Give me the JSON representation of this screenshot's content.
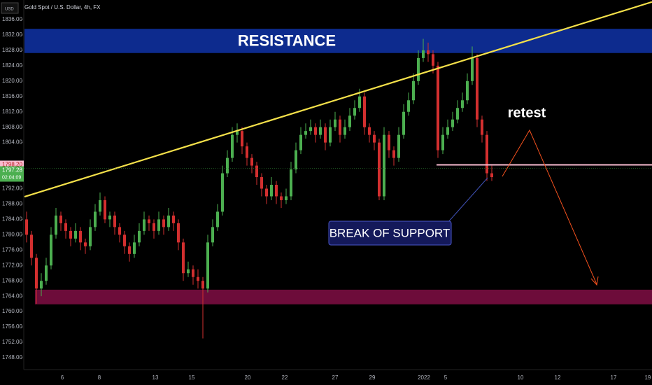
{
  "chart_data": {
    "type": "candlestick",
    "title": "Gold Spot / U.S. Dollar, 4h, FX",
    "currency": "USD",
    "up_color": "#4caf50",
    "down_color": "#d32f2f",
    "ylim": [
      1746,
      1841
    ],
    "yticks": [
      {
        "value": 1836,
        "label": "1836.00"
      },
      {
        "value": 1832,
        "label": "1832.00"
      },
      {
        "value": 1828,
        "label": "1828.00"
      },
      {
        "value": 1824,
        "label": "1824.00"
      },
      {
        "value": 1820,
        "label": "1820.00"
      },
      {
        "value": 1816,
        "label": "1816.00"
      },
      {
        "value": 1812,
        "label": "1812.00"
      },
      {
        "value": 1808,
        "label": "1808.00"
      },
      {
        "value": 1804,
        "label": "1804.00"
      },
      {
        "value": 1792,
        "label": "1792.00"
      },
      {
        "value": 1788,
        "label": "1788.00"
      },
      {
        "value": 1784,
        "label": "1784.00"
      },
      {
        "value": 1780,
        "label": "1780.00"
      },
      {
        "value": 1776,
        "label": "1776.00"
      },
      {
        "value": 1772,
        "label": "1772.00"
      },
      {
        "value": 1768,
        "label": "1768.00"
      },
      {
        "value": 1764,
        "label": "1764.00"
      },
      {
        "value": 1760,
        "label": "1760.00"
      },
      {
        "value": 1756,
        "label": "1756.00"
      },
      {
        "value": 1752,
        "label": "1752.00"
      },
      {
        "value": 1748,
        "label": "1748.00"
      }
    ],
    "x_labels": [
      "6",
      "8",
      "13",
      "15",
      "20",
      "22",
      "27",
      "29",
      "2022",
      "5",
      "10",
      "12",
      "17",
      "19"
    ],
    "price_label": {
      "value": 1798.2,
      "label": "1798.20"
    },
    "last_price": 1797.28,
    "countdown": "02:04:09",
    "resistance": {
      "label": "RESISTANCE",
      "range": [
        1827.3,
        1833.6
      ]
    },
    "support_zone": [
      1761.9,
      1765.7
    ],
    "support_line": 1798.2,
    "trendline": [
      1789.9,
      1840.6
    ],
    "retest": "retest",
    "break_label": "BREAK OF SUPPORT",
    "candles": [
      [
        1784,
        1786,
        1778,
        1780
      ],
      [
        1780,
        1781,
        1772,
        1774
      ],
      [
        1774,
        1775,
        1762,
        1766
      ],
      [
        1766,
        1770,
        1764,
        1768
      ],
      [
        1768,
        1774,
        1767,
        1772
      ],
      [
        1772,
        1782,
        1771,
        1780
      ],
      [
        1780,
        1787,
        1779,
        1785
      ],
      [
        1785,
        1786,
        1781,
        1783
      ],
      [
        1783,
        1784,
        1779,
        1781
      ],
      [
        1781,
        1782,
        1777,
        1779
      ],
      [
        1779,
        1783,
        1778,
        1781
      ],
      [
        1781,
        1782,
        1776,
        1778
      ],
      [
        1778,
        1779,
        1775,
        1777
      ],
      [
        1777,
        1784,
        1776,
        1782
      ],
      [
        1782,
        1788,
        1781,
        1786
      ],
      [
        1786,
        1791,
        1785,
        1789
      ],
      [
        1789,
        1790,
        1783,
        1784
      ],
      [
        1784,
        1786,
        1782,
        1785
      ],
      [
        1785,
        1786,
        1780,
        1782
      ],
      [
        1782,
        1783,
        1778,
        1780
      ],
      [
        1780,
        1781,
        1775,
        1777
      ],
      [
        1777,
        1778,
        1773,
        1775
      ],
      [
        1775,
        1780,
        1774,
        1778
      ],
      [
        1778,
        1783,
        1777,
        1781
      ],
      [
        1781,
        1786,
        1780,
        1784
      ],
      [
        1784,
        1785,
        1781,
        1783
      ],
      [
        1783,
        1784,
        1779,
        1781
      ],
      [
        1781,
        1786,
        1780,
        1784
      ],
      [
        1784,
        1785,
        1780,
        1782
      ],
      [
        1782,
        1787,
        1781,
        1785
      ],
      [
        1785,
        1786,
        1781,
        1783
      ],
      [
        1783,
        1784,
        1776,
        1778
      ],
      [
        1778,
        1779,
        1768,
        1770
      ],
      [
        1770,
        1773,
        1769,
        1771
      ],
      [
        1771,
        1772,
        1767,
        1769
      ],
      [
        1769,
        1771,
        1766,
        1768
      ],
      [
        1768,
        1769,
        1753,
        1766
      ],
      [
        1766,
        1780,
        1765,
        1778
      ],
      [
        1778,
        1784,
        1777,
        1782
      ],
      [
        1782,
        1788,
        1781,
        1786
      ],
      [
        1786,
        1798,
        1785,
        1796
      ],
      [
        1796,
        1802,
        1795,
        1800
      ],
      [
        1800,
        1808,
        1799,
        1806
      ],
      [
        1806,
        1809,
        1804,
        1807
      ],
      [
        1807,
        1808,
        1801,
        1803
      ],
      [
        1803,
        1804,
        1798,
        1800
      ],
      [
        1800,
        1801,
        1796,
        1798
      ],
      [
        1798,
        1799,
        1793,
        1795
      ],
      [
        1795,
        1796,
        1790,
        1792
      ],
      [
        1792,
        1793,
        1788,
        1790
      ],
      [
        1790,
        1795,
        1789,
        1793
      ],
      [
        1793,
        1794,
        1788,
        1790
      ],
      [
        1790,
        1791,
        1787,
        1789
      ],
      [
        1789,
        1792,
        1788,
        1790
      ],
      [
        1790,
        1799,
        1789,
        1797
      ],
      [
        1797,
        1804,
        1796,
        1802
      ],
      [
        1802,
        1808,
        1801,
        1806
      ],
      [
        1806,
        1809,
        1805,
        1807
      ],
      [
        1807,
        1810,
        1806,
        1808
      ],
      [
        1808,
        1809,
        1804,
        1806
      ],
      [
        1806,
        1810,
        1805,
        1808
      ],
      [
        1808,
        1809,
        1802,
        1804
      ],
      [
        1804,
        1810,
        1803,
        1808
      ],
      [
        1808,
        1812,
        1807,
        1810
      ],
      [
        1810,
        1811,
        1804,
        1806
      ],
      [
        1806,
        1810,
        1805,
        1808
      ],
      [
        1808,
        1813,
        1807,
        1811
      ],
      [
        1811,
        1815,
        1810,
        1813
      ],
      [
        1813,
        1818,
        1812,
        1816
      ],
      [
        1816,
        1817,
        1806,
        1808
      ],
      [
        1808,
        1809,
        1804,
        1806
      ],
      [
        1806,
        1807,
        1802,
        1804
      ],
      [
        1804,
        1805,
        1789,
        1790
      ],
      [
        1790,
        1808,
        1789,
        1806
      ],
      [
        1806,
        1807,
        1800,
        1802
      ],
      [
        1802,
        1803,
        1798,
        1800
      ],
      [
        1800,
        1808,
        1799,
        1806
      ],
      [
        1806,
        1814,
        1805,
        1812
      ],
      [
        1812,
        1817,
        1811,
        1815
      ],
      [
        1815,
        1822,
        1814,
        1820
      ],
      [
        1820,
        1828,
        1819,
        1826
      ],
      [
        1826,
        1831,
        1825,
        1828
      ],
      [
        1828,
        1830,
        1825,
        1827
      ],
      [
        1827,
        1828,
        1822,
        1824
      ],
      [
        1824,
        1825,
        1800,
        1802
      ],
      [
        1802,
        1808,
        1801,
        1806
      ],
      [
        1806,
        1810,
        1805,
        1808
      ],
      [
        1808,
        1812,
        1807,
        1810
      ],
      [
        1810,
        1815,
        1809,
        1813
      ],
      [
        1813,
        1817,
        1812,
        1815
      ],
      [
        1815,
        1822,
        1814,
        1820
      ],
      [
        1820,
        1829,
        1819,
        1826
      ],
      [
        1826,
        1827,
        1808,
        1810
      ],
      [
        1810,
        1811,
        1804,
        1806
      ],
      [
        1806,
        1807,
        1794,
        1796
      ],
      [
        1796,
        1798,
        1794,
        1795
      ]
    ]
  }
}
